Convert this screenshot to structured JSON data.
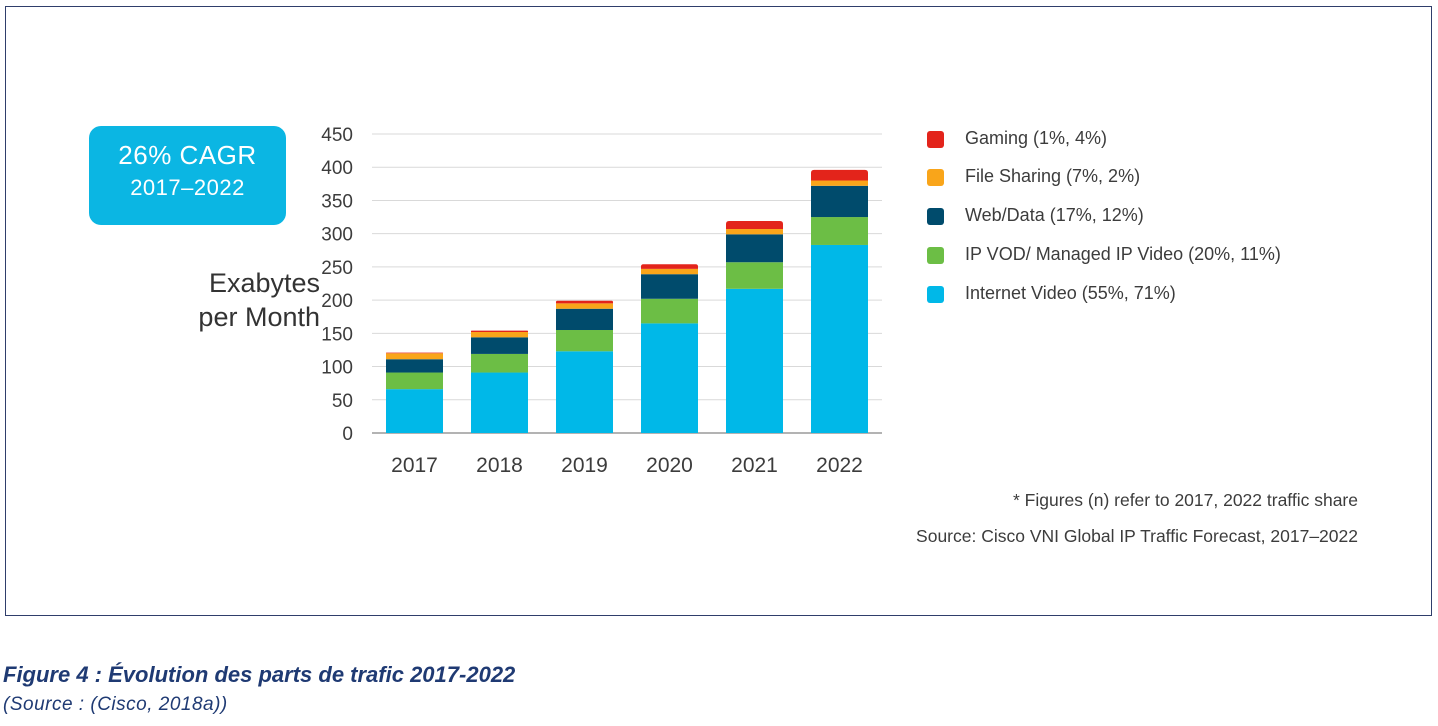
{
  "badge": {
    "main": "26% CAGR",
    "sub": "2017–2022"
  },
  "ylabel_lines": [
    "Exabytes",
    "per Month"
  ],
  "chart_data": {
    "type": "bar",
    "stacked": true,
    "categories": [
      "2017",
      "2018",
      "2019",
      "2020",
      "2021",
      "2022"
    ],
    "ylim": [
      0,
      450
    ],
    "yticks": [
      "0",
      "50",
      "100",
      "150",
      "200",
      "250",
      "300",
      "350",
      "400",
      "450"
    ],
    "ylabel": "Exabytes per Month",
    "grid": true,
    "legend_position": "right",
    "series": [
      {
        "name": "Internet Video (55%, 71%)",
        "color": "#00b8e8",
        "values": [
          66,
          91,
          123,
          165,
          217,
          283
        ]
      },
      {
        "name": "IP VOD/ Managed IP Video (20%, 11%)",
        "color": "#6cbe45",
        "values": [
          25,
          28,
          32,
          37,
          40,
          42
        ]
      },
      {
        "name": "Web/Data (17%, 12%)",
        "color": "#004b6c",
        "values": [
          20,
          25,
          32,
          37,
          42,
          47
        ]
      },
      {
        "name": "File Sharing (7%, 2%)",
        "color": "#f9a51a",
        "values": [
          9,
          8,
          8,
          8,
          8,
          8
        ]
      },
      {
        "name": "Gaming (1%, 4%)",
        "color": "#e3241b",
        "values": [
          1,
          2,
          4,
          7,
          12,
          16
        ]
      }
    ]
  },
  "legend_order": [
    4,
    3,
    2,
    1,
    0
  ],
  "notes": {
    "figures": "* Figures (n) refer to 2017, 2022 traffic share",
    "source": "Source: Cisco VNI Global IP Traffic Forecast, 2017–2022"
  },
  "caption": {
    "title": "Figure 4 : Évolution des parts de trafic 2017-2022",
    "source": "(Source : (Cisco, 2018a))"
  }
}
